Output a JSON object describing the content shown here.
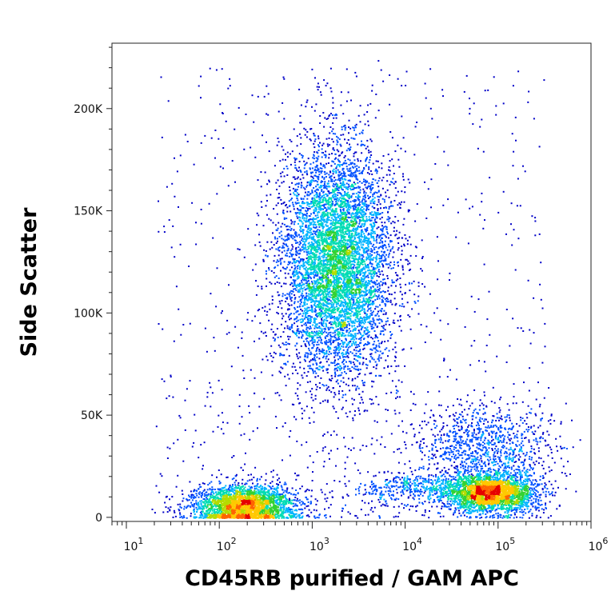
{
  "chart_data": {
    "type": "scatter",
    "style": "flow-cytometry density dot plot",
    "title": "",
    "xlabel": "CD45RB purified / GAM APC",
    "ylabel": "Side Scatter",
    "x_scale": "log",
    "xlim": [
      7,
      1000000
    ],
    "ylim": [
      -2000,
      232000
    ],
    "x_ticks": [
      {
        "value": 10,
        "base": "10",
        "exp": "1"
      },
      {
        "value": 100,
        "base": "10",
        "exp": "2"
      },
      {
        "value": 1000,
        "base": "10",
        "exp": "3"
      },
      {
        "value": 10000,
        "base": "10",
        "exp": "4"
      },
      {
        "value": 100000,
        "base": "10",
        "exp": "5"
      },
      {
        "value": 1000000,
        "base": "10",
        "exp": "6"
      }
    ],
    "y_ticks": [
      {
        "value": 0,
        "label": "0"
      },
      {
        "value": 50000,
        "label": "50K"
      },
      {
        "value": 100000,
        "label": "100K"
      },
      {
        "value": 150000,
        "label": "150K"
      },
      {
        "value": 200000,
        "label": "200K"
      }
    ],
    "grid": false,
    "legend": "none",
    "density_colors": [
      "#0000c8",
      "#0050ff",
      "#00b4ff",
      "#00dcb4",
      "#32d232",
      "#b4dc00",
      "#ffc800",
      "#ff6400",
      "#e60000"
    ],
    "populations": [
      {
        "center_x": 1800,
        "center_y": 125000,
        "count": 6500
      },
      {
        "center_x": 180,
        "center_y": 6000,
        "count": 2600
      },
      {
        "center_x": 85000,
        "center_y": 12000,
        "count": 2400
      },
      {
        "center_x": 70000,
        "center_y": 35000,
        "count": 1000
      },
      {
        "center_x": 20000,
        "center_y": 14000,
        "count": 650
      }
    ]
  }
}
